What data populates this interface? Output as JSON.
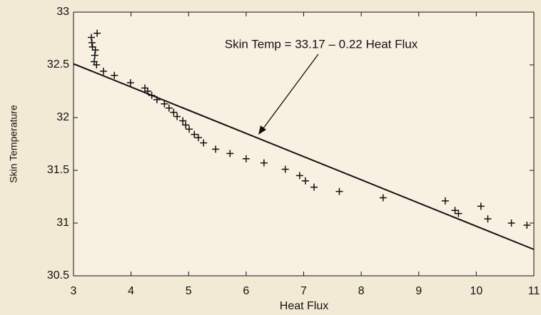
{
  "chart_data": {
    "type": "scatter",
    "xlabel": "Heat Flux",
    "ylabel": "Skin Temperature",
    "annotation": "Skin Temp = 33.17 – 0.22 Heat Flux",
    "fit": {
      "intercept": 33.17,
      "slope": -0.22
    },
    "xlim": [
      3,
      11
    ],
    "xticks": [
      3,
      4,
      5,
      6,
      7,
      8,
      9,
      10,
      11
    ],
    "ylim": [
      30.5,
      33
    ],
    "yticks": [
      30.5,
      31,
      31.5,
      32,
      32.5,
      33
    ],
    "marker_color": "#111111",
    "line_color": "#111111",
    "x": [
      3.41,
      3.31,
      3.32,
      3.33,
      3.38,
      3.37,
      3.36,
      3.4,
      3.52,
      3.71,
      3.99,
      4.24,
      4.29,
      4.36,
      4.45,
      4.58,
      4.66,
      4.74,
      4.8,
      4.9,
      4.95,
      5.01,
      5.1,
      5.17,
      5.26,
      5.47,
      5.72,
      6.0,
      6.31,
      6.68,
      6.93,
      7.03,
      7.18,
      7.62,
      8.38,
      9.46,
      9.63,
      9.69,
      10.08,
      10.2,
      10.61,
      10.88
    ],
    "y": [
      32.8,
      32.76,
      32.71,
      32.67,
      32.64,
      32.59,
      32.53,
      32.5,
      32.44,
      32.4,
      32.33,
      32.28,
      32.25,
      32.21,
      32.17,
      32.13,
      32.09,
      32.05,
      32.01,
      31.97,
      31.93,
      31.89,
      31.84,
      31.81,
      31.76,
      31.7,
      31.66,
      31.61,
      31.57,
      31.51,
      31.45,
      31.4,
      31.34,
      31.3,
      31.24,
      31.21,
      31.12,
      31.09,
      31.16,
      31.04,
      31.0,
      30.98
    ]
  }
}
